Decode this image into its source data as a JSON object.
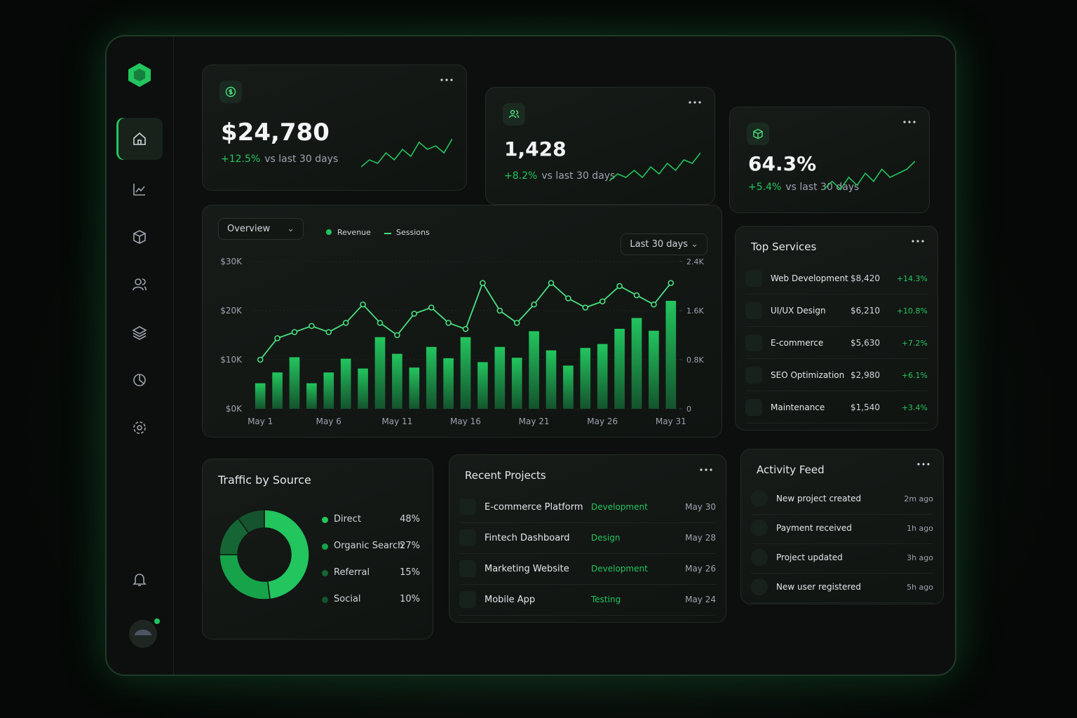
{
  "kpis": [
    {
      "value": "$24,780",
      "change": "+12.5%",
      "note": "vs last 30 days",
      "spark": [
        3,
        5,
        4,
        7,
        5,
        8,
        6,
        10,
        8,
        9,
        7,
        11
      ]
    },
    {
      "value": "1,428",
      "change": "+8.2%",
      "note": "vs last 30 days",
      "spark": [
        3,
        5,
        4,
        6,
        4,
        7,
        5,
        8,
        6,
        9,
        8,
        11
      ]
    },
    {
      "value": "64.3%",
      "change": "+5.4%",
      "note": "vs last 30 days",
      "spark": [
        4,
        6,
        4,
        7,
        5,
        8,
        6,
        9,
        7,
        8,
        9,
        11
      ]
    }
  ],
  "overview_card": {
    "dropdown": "Overview",
    "range": "Last 30 days"
  },
  "chart_data": [
    {
      "type": "bar",
      "legend": "top-left",
      "grid": true,
      "categories": [
        "May 1",
        null,
        null,
        null,
        "May 6",
        null,
        null,
        null,
        "May 11",
        null,
        null,
        null,
        "May 16",
        null,
        null,
        null,
        "May 21",
        null,
        null,
        null,
        "May 26",
        null,
        null,
        null,
        "May 31"
      ],
      "series": [
        {
          "name": "Revenue",
          "type": "bar",
          "color": "#22c55e",
          "values": [
            5200,
            7400,
            10500,
            5200,
            7400,
            10200,
            8200,
            14600,
            11200,
            8400,
            12600,
            10300,
            14600,
            9500,
            12600,
            10400,
            15800,
            11900,
            8800,
            12400,
            13200,
            16300,
            18500,
            15900,
            22000
          ]
        },
        {
          "name": "Sessions",
          "type": "line",
          "axis": "y2",
          "color": "#4ade80",
          "values": [
            800,
            1150,
            1250,
            1350,
            1250,
            1400,
            1700,
            1400,
            1200,
            1550,
            1650,
            1400,
            1300,
            2050,
            1600,
            1400,
            1700,
            2050,
            1800,
            1650,
            1750,
            2000,
            1850,
            1700,
            2050
          ]
        }
      ],
      "ylim": [
        0,
        30000
      ],
      "yticks": [
        {
          "value": 0,
          "label": "$0K"
        },
        {
          "value": 10000,
          "label": "$10K"
        },
        {
          "value": 20000,
          "label": "$20K"
        },
        {
          "value": 30000,
          "label": "$30K"
        }
      ],
      "y2lim": [
        0,
        2400
      ],
      "y2ticks": [
        0,
        {
          "value": 800,
          "label": "0.8K"
        },
        {
          "value": 1600,
          "label": "1.6K"
        },
        {
          "value": 2400,
          "label": "2.4K"
        }
      ]
    },
    {
      "type": "pie",
      "donut": true,
      "title": "Traffic by Source",
      "categories": [
        "Direct",
        "Organic Search",
        "Referral",
        "Social"
      ],
      "values": [
        48,
        27,
        15,
        10
      ],
      "value_labels": [
        "48%",
        "27%",
        "15%",
        "10%"
      ],
      "colors": [
        "#22c55e",
        "#16a34a",
        "#166534",
        "#14532d"
      ]
    }
  ],
  "top_services": {
    "title": "Top Services",
    "rows": [
      {
        "name": "Web Development",
        "amount": "$8,420",
        "change": "+14.3%"
      },
      {
        "name": "UI/UX Design",
        "amount": "$6,210",
        "change": "+10.8%"
      },
      {
        "name": "E-commerce",
        "amount": "$5,630",
        "change": "+7.2%"
      },
      {
        "name": "SEO Optimization",
        "amount": "$2,980",
        "change": "+6.1%"
      },
      {
        "name": "Maintenance",
        "amount": "$1,540",
        "change": "+3.4%"
      }
    ]
  },
  "recent_projects": {
    "title": "Recent Projects",
    "rows": [
      {
        "name": "E-commerce Platform",
        "status": "Development",
        "date": "May 30"
      },
      {
        "name": "Fintech Dashboard",
        "status": "Design",
        "date": "May 28"
      },
      {
        "name": "Marketing Website",
        "status": "Development",
        "date": "May 26"
      },
      {
        "name": "Mobile App",
        "status": "Testing",
        "date": "May 24"
      }
    ]
  },
  "activity_feed": {
    "title": "Activity Feed",
    "rows": [
      {
        "text": "New project created",
        "time": "2m ago"
      },
      {
        "text": "Payment received",
        "time": "1h ago"
      },
      {
        "text": "Project updated",
        "time": "3h ago"
      },
      {
        "text": "New user registered",
        "time": "5h ago"
      }
    ]
  }
}
